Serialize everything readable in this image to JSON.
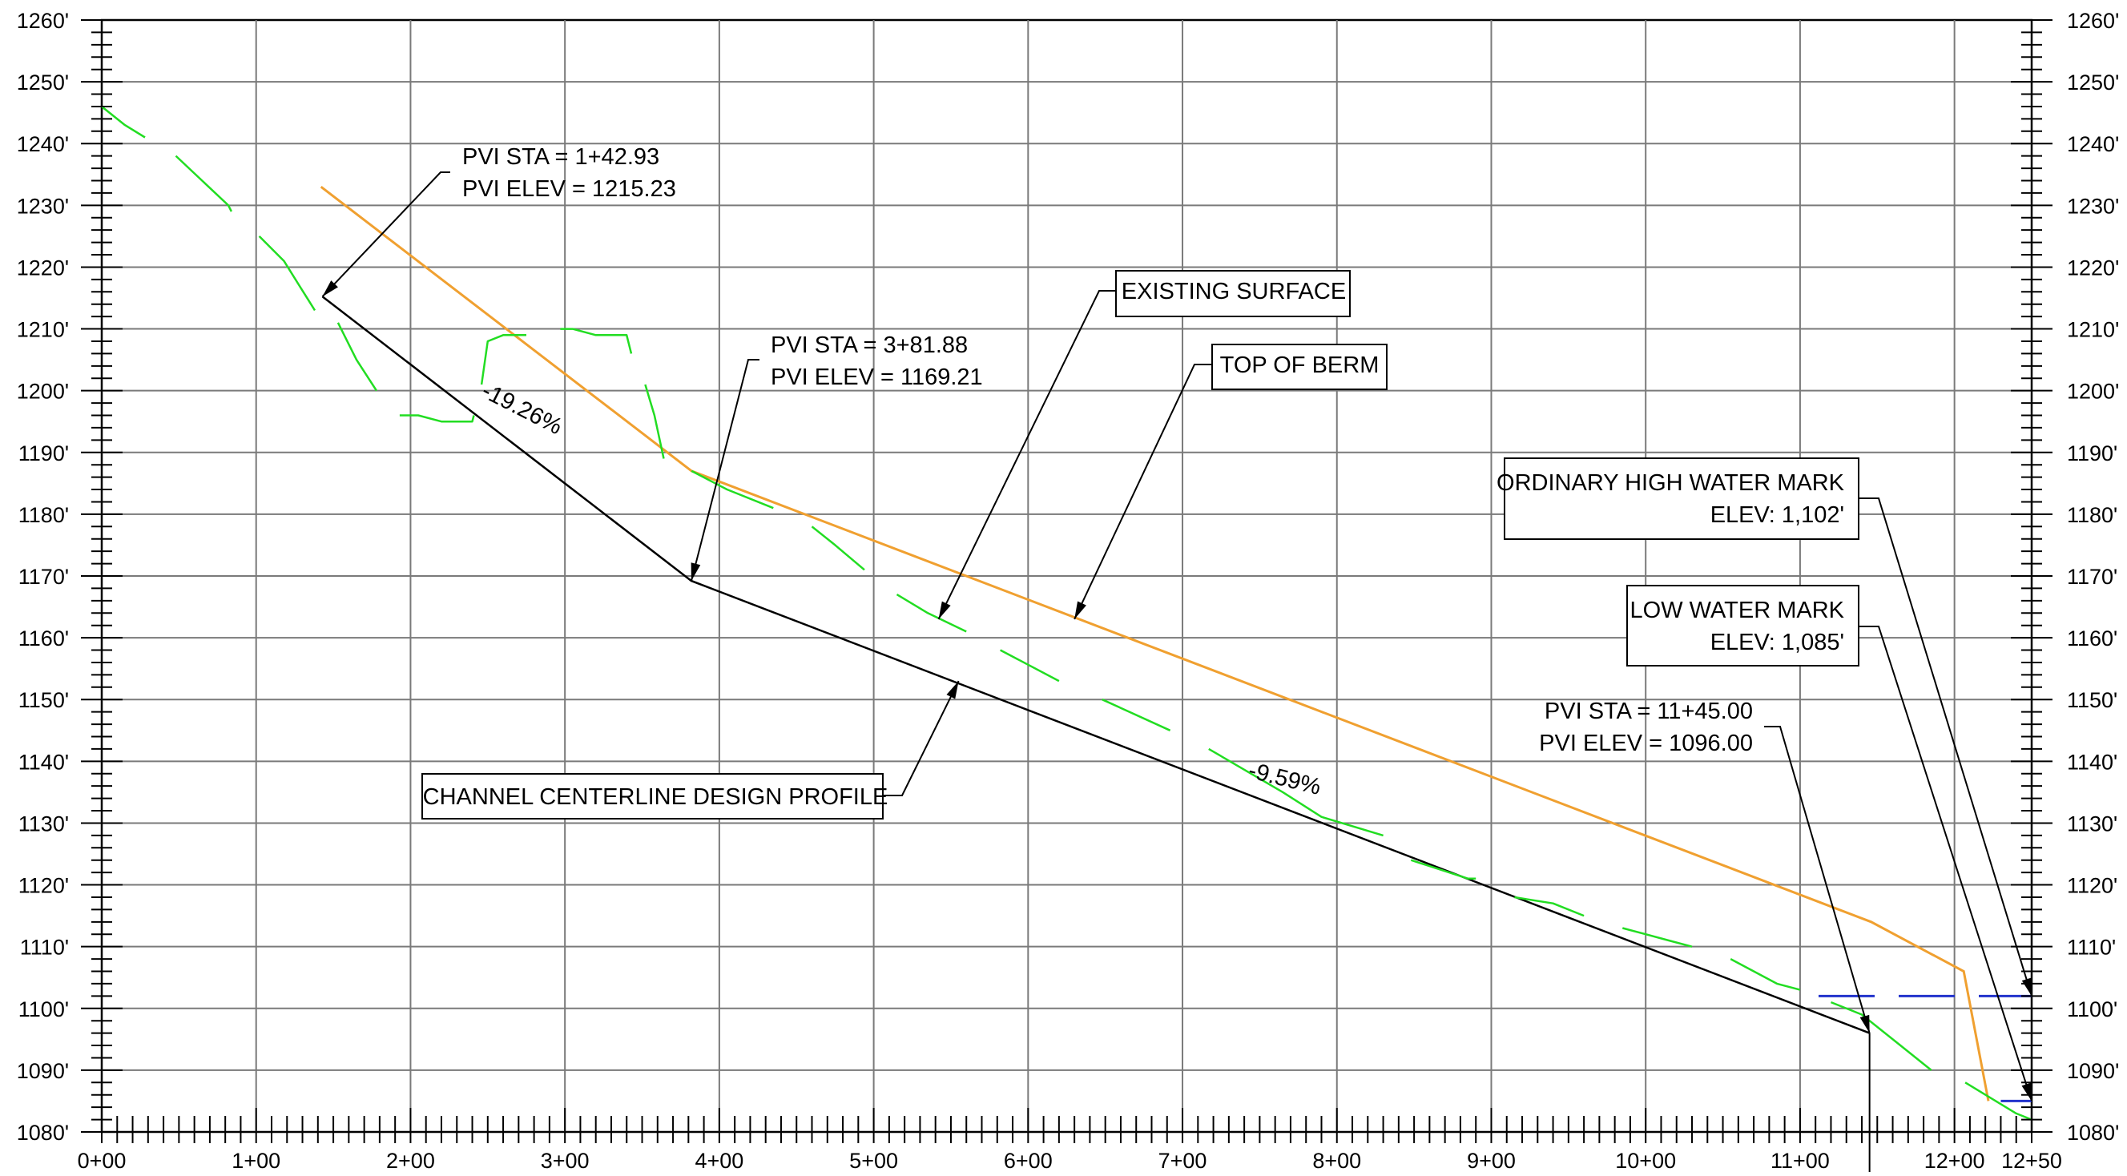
{
  "chart_data": {
    "type": "line",
    "xlabel": "",
    "ylabel": "",
    "xlim": [
      0,
      1250
    ],
    "ylim": [
      1080,
      1260
    ],
    "x_ticks": [
      {
        "value": 0,
        "label": "0+00"
      },
      {
        "value": 100,
        "label": "1+00"
      },
      {
        "value": 200,
        "label": "2+00"
      },
      {
        "value": 300,
        "label": "3+00"
      },
      {
        "value": 400,
        "label": "4+00"
      },
      {
        "value": 500,
        "label": "5+00"
      },
      {
        "value": 600,
        "label": "6+00"
      },
      {
        "value": 700,
        "label": "7+00"
      },
      {
        "value": 800,
        "label": "8+00"
      },
      {
        "value": 900,
        "label": "9+00"
      },
      {
        "value": 1000,
        "label": "10+00"
      },
      {
        "value": 1100,
        "label": "11+00"
      },
      {
        "value": 1200,
        "label": "12+00"
      },
      {
        "value": 1250,
        "label": "12+50"
      }
    ],
    "y_ticks": [
      {
        "value": 1260,
        "label": "1260'"
      },
      {
        "value": 1250,
        "label": "1250'"
      },
      {
        "value": 1240,
        "label": "1240'"
      },
      {
        "value": 1230,
        "label": "1230'"
      },
      {
        "value": 1220,
        "label": "1220'"
      },
      {
        "value": 1210,
        "label": "1210'"
      },
      {
        "value": 1200,
        "label": "1200'"
      },
      {
        "value": 1190,
        "label": "1190'"
      },
      {
        "value": 1180,
        "label": "1180'"
      },
      {
        "value": 1170,
        "label": "1170'"
      },
      {
        "value": 1160,
        "label": "1160'"
      },
      {
        "value": 1150,
        "label": "1150'"
      },
      {
        "value": 1140,
        "label": "1140'"
      },
      {
        "value": 1130,
        "label": "1130'"
      },
      {
        "value": 1120,
        "label": "1120'"
      },
      {
        "value": 1110,
        "label": "1110'"
      },
      {
        "value": 1100,
        "label": "1100'"
      },
      {
        "value": 1090,
        "label": "1090'"
      },
      {
        "value": 1080,
        "label": "1080'"
      }
    ],
    "grid": true,
    "series": [
      {
        "name": "CHANNEL CENTERLINE DESIGN PROFILE",
        "color": "#000000",
        "style": "solid",
        "points": [
          [
            142.93,
            1215.23
          ],
          [
            381.88,
            1169.21
          ],
          [
            1145.0,
            1096.0
          ]
        ]
      },
      {
        "name": "TOP OF BERM",
        "color": "#f0a030",
        "style": "solid",
        "points": [
          [
            142,
            1233
          ],
          [
            382,
            1187
          ],
          [
            1146,
            1114
          ],
          [
            1206,
            1106
          ],
          [
            1222,
            1085
          ]
        ]
      },
      {
        "name": "EXISTING SURFACE",
        "color": "#22dd22",
        "style": "dashed",
        "segments": [
          [
            [
              0,
              1246
            ],
            [
              15,
              1243
            ],
            [
              28,
              1241
            ]
          ],
          [
            [
              48,
              1238
            ],
            [
              82,
              1230
            ],
            [
              84,
              1229
            ]
          ],
          [
            [
              102,
              1225
            ],
            [
              118,
              1221
            ],
            [
              128,
              1217
            ],
            [
              138,
              1213
            ]
          ],
          [
            [
              153,
              1211
            ],
            [
              165,
              1205
            ],
            [
              178,
              1200
            ]
          ],
          [
            [
              193,
              1196
            ],
            [
              205,
              1196
            ],
            [
              220,
              1195
            ],
            [
              240,
              1195
            ],
            [
              241,
              1196
            ]
          ],
          [
            [
              246,
              1201
            ],
            [
              250,
              1208
            ],
            [
              260,
              1209
            ],
            [
              275,
              1209
            ]
          ],
          [
            [
              297,
              1210
            ],
            [
              305,
              1210
            ],
            [
              320,
              1209
            ],
            [
              340,
              1209
            ],
            [
              343,
              1206
            ]
          ],
          [
            [
              352,
              1201
            ],
            [
              358,
              1196
            ],
            [
              364,
              1189
            ]
          ],
          [
            [
              382,
              1187
            ],
            [
              405,
              1184
            ],
            [
              435,
              1181
            ]
          ],
          [
            [
              460,
              1178
            ],
            [
              475,
              1175
            ],
            [
              494,
              1171
            ]
          ],
          [
            [
              515,
              1167
            ],
            [
              535,
              1164
            ],
            [
              560,
              1161
            ]
          ],
          [
            [
              582,
              1158
            ],
            [
              620,
              1153
            ]
          ],
          [
            [
              648,
              1150
            ],
            [
              692,
              1145
            ]
          ],
          [
            [
              717,
              1142
            ],
            [
              765,
              1135
            ],
            [
              790,
              1131
            ],
            [
              830,
              1128
            ]
          ],
          [
            [
              848,
              1124
            ],
            [
              885,
              1121
            ],
            [
              890,
              1121
            ]
          ],
          [
            [
              915,
              1118
            ],
            [
              940,
              1117
            ],
            [
              960,
              1115
            ]
          ],
          [
            [
              985,
              1113
            ],
            [
              1000,
              1112
            ],
            [
              1015,
              1111
            ],
            [
              1030,
              1110
            ]
          ],
          [
            [
              1055,
              1108
            ],
            [
              1085,
              1104
            ],
            [
              1100,
              1103
            ]
          ],
          [
            [
              1120,
              1101
            ],
            [
              1140,
              1099
            ],
            [
              1165,
              1094
            ],
            [
              1185,
              1090
            ]
          ],
          [
            [
              1207,
              1088
            ],
            [
              1240,
              1083
            ],
            [
              1250,
              1082
            ]
          ]
        ]
      },
      {
        "name": "ORDINARY HIGH WATER MARK",
        "color": "#2233cc",
        "style": "dashed",
        "points": [
          [
            1112,
            1102
          ],
          [
            1250,
            1102
          ]
        ]
      },
      {
        "name": "LOW WATER MARK",
        "color": "#2233cc",
        "style": "solid",
        "points": [
          [
            1230,
            1085
          ],
          [
            1250,
            1085
          ]
        ]
      }
    ],
    "grade_labels": [
      {
        "text": "-19.26%",
        "at": [
          270,
          1196
        ],
        "angle": 27
      },
      {
        "text": "-9.59%",
        "at": [
          765,
          1136
        ],
        "angle": 14
      }
    ],
    "callouts": [
      {
        "id": "pvi1",
        "lines": [
          "PVI STA = 1+42.93",
          "PVI ELEV =  1215.23"
        ],
        "boxed": false,
        "anchor": [
          142.93,
          1215.23
        ]
      },
      {
        "id": "pvi2",
        "lines": [
          "PVI STA = 3+81.88",
          "PVI ELEV =  1169.21"
        ],
        "boxed": false,
        "anchor": [
          381.88,
          1169.21
        ]
      },
      {
        "id": "pvi3",
        "lines": [
          "PVI STA = 11+45.00",
          "PVI ELEV =  1096.00"
        ],
        "boxed": false,
        "anchor": [
          1145.0,
          1096.0
        ]
      },
      {
        "id": "existing",
        "lines": [
          "EXISTING SURFACE"
        ],
        "boxed": true,
        "anchor": [
          542,
          1163
        ]
      },
      {
        "id": "berm",
        "lines": [
          "TOP OF BERM"
        ],
        "boxed": true,
        "anchor": [
          630,
          1163
        ]
      },
      {
        "id": "centerline",
        "lines": [
          "CHANNEL CENTERLINE DESIGN PROFILE"
        ],
        "boxed": true,
        "anchor": [
          555,
          1153
        ]
      },
      {
        "id": "ohwm",
        "lines": [
          "ORDINARY HIGH WATER MARK",
          "ELEV: 1,102'"
        ],
        "boxed": true,
        "anchor": [
          1250,
          1102
        ]
      },
      {
        "id": "lwm",
        "lines": [
          "LOW WATER MARK",
          "ELEV: 1,085'"
        ],
        "boxed": true,
        "anchor": [
          1250,
          1085
        ]
      }
    ]
  }
}
